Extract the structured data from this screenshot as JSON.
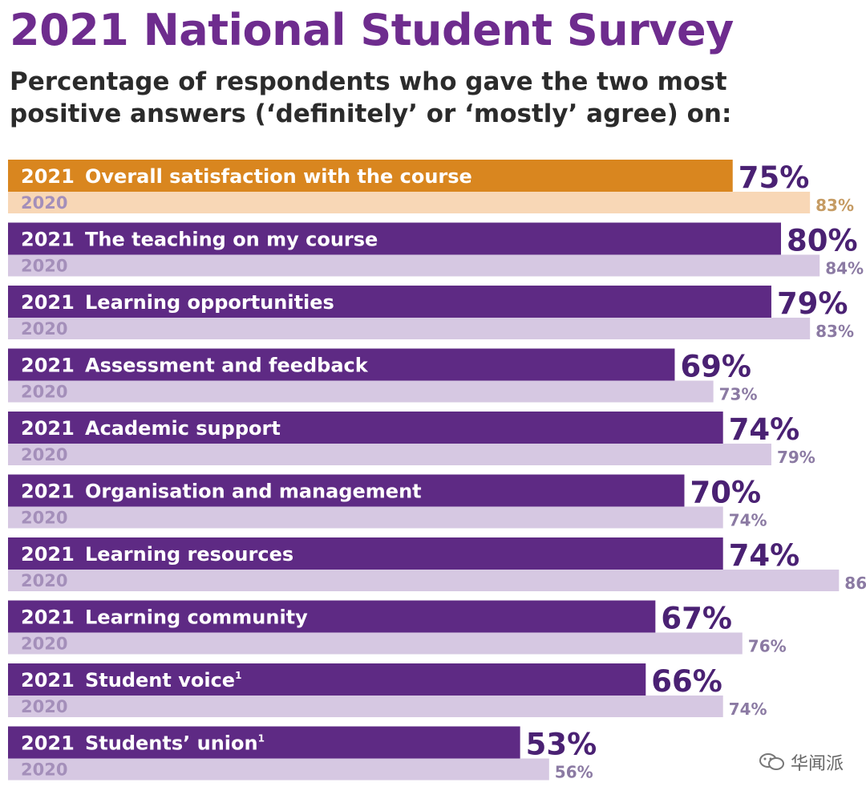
{
  "title": "2021 National Student Survey",
  "subtitle": "Percentage of respondents who gave the two most positive answers (‘definitely’ or ‘mostly’ agree) on:",
  "colors": {
    "title": "#6e2c8e",
    "highlight_2021": "#d9861f",
    "highlight_2020": "#f8d7b6",
    "highlight_2020_label": "#c59b63",
    "main_2021": "#5e2a84",
    "main_2020": "#d6c8e2",
    "main_2020_label": "#8b7aa3",
    "value_2021": "#4a2173",
    "year_2020_text": "#a48fba"
  },
  "watermark": "华闻派",
  "chart_data": {
    "type": "bar",
    "orientation": "horizontal",
    "title": "2021 National Student Survey",
    "xlabel": "",
    "ylabel": "",
    "xlim": [
      0,
      100
    ],
    "unit": "%",
    "year_labels": {
      "current": "2021",
      "previous": "2020"
    },
    "categories": [
      {
        "label": "Overall satisfaction with the course",
        "footnote": "",
        "v2021": 75,
        "v2020": 83,
        "highlight": true
      },
      {
        "label": "The teaching on my course",
        "footnote": "",
        "v2021": 80,
        "v2020": 84,
        "highlight": false
      },
      {
        "label": "Learning opportunities",
        "footnote": "",
        "v2021": 79,
        "v2020": 83,
        "highlight": false
      },
      {
        "label": "Assessment and feedback",
        "footnote": "",
        "v2021": 69,
        "v2020": 73,
        "highlight": false
      },
      {
        "label": "Academic support",
        "footnote": "",
        "v2021": 74,
        "v2020": 79,
        "highlight": false
      },
      {
        "label": "Organisation and management",
        "footnote": "",
        "v2021": 70,
        "v2020": 74,
        "highlight": false
      },
      {
        "label": "Learning resources",
        "footnote": "",
        "v2021": 74,
        "v2020": 86,
        "highlight": false
      },
      {
        "label": "Learning community",
        "footnote": "",
        "v2021": 67,
        "v2020": 76,
        "highlight": false
      },
      {
        "label": "Student voice",
        "footnote": "1",
        "v2021": 66,
        "v2020": 74,
        "highlight": false
      },
      {
        "label": "Students’ union",
        "footnote": "1",
        "v2021": 53,
        "v2020": 56,
        "highlight": false
      }
    ],
    "series": [
      {
        "name": "2021",
        "values": [
          75,
          80,
          79,
          69,
          74,
          70,
          74,
          67,
          66,
          53
        ]
      },
      {
        "name": "2020",
        "values": [
          83,
          84,
          83,
          73,
          79,
          74,
          86,
          76,
          74,
          56
        ]
      }
    ]
  }
}
